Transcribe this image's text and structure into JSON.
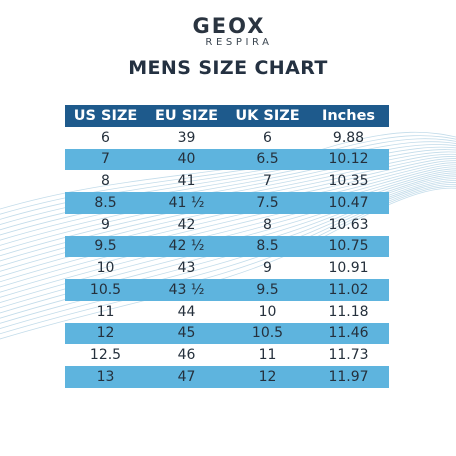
{
  "brand": {
    "name": "GEOX",
    "sub": "RESPIRA"
  },
  "title": "MENS SIZE CHART",
  "colors": {
    "header": "#1e5a8c",
    "stripe": "#5eb4de",
    "text": "#25303c"
  },
  "table": {
    "headers": [
      "US SIZE",
      "EU SIZE",
      "UK SIZE",
      "Inches"
    ],
    "rows": [
      [
        "6",
        "39",
        "6",
        "9.88"
      ],
      [
        "7",
        "40",
        "6.5",
        "10.12"
      ],
      [
        "8",
        "41",
        "7",
        "10.35"
      ],
      [
        "8.5",
        "41 ½",
        "7.5",
        "10.47"
      ],
      [
        "9",
        "42",
        "8",
        "10.63"
      ],
      [
        "9.5",
        "42 ½",
        "8.5",
        "10.75"
      ],
      [
        "10",
        "43",
        "9",
        "10.91"
      ],
      [
        "10.5",
        "43 ½",
        "9.5",
        "11.02"
      ],
      [
        "11",
        "44",
        "10",
        "11.18"
      ],
      [
        "12",
        "45",
        "10.5",
        "11.46"
      ],
      [
        "12.5",
        "46",
        "11",
        "11.73"
      ],
      [
        "13",
        "47",
        "12",
        "11.97"
      ]
    ]
  }
}
